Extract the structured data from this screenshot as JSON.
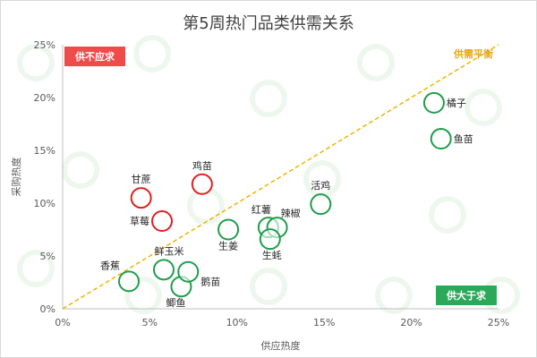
{
  "chart_data": {
    "type": "scatter",
    "title": "第5周热门品类供需关系",
    "xlabel": "供应热度",
    "ylabel": "采购热度",
    "xlim": [
      0,
      25
    ],
    "ylim": [
      0,
      25
    ],
    "x_ticks": [
      "0%",
      "5%",
      "10%",
      "15%",
      "20%",
      "25%"
    ],
    "y_ticks": [
      "0%",
      "5%",
      "10%",
      "15%",
      "20%",
      "25%"
    ],
    "grid": false,
    "reference_line": {
      "label": "供需平衡",
      "from": [
        0,
        0
      ],
      "to": [
        25,
        25
      ],
      "color": "#f0b400"
    },
    "regions": [
      {
        "label": "供不应求",
        "position": "top-left",
        "color": "#f04b4b"
      },
      {
        "label": "供大于求",
        "position": "bottom-right",
        "color": "#2ca85a"
      }
    ],
    "series": [
      {
        "status": "supply-short",
        "color": "#e02020",
        "points": [
          {
            "label": "甘蔗",
            "x": 4.5,
            "y": 10.5
          },
          {
            "label": "鸡苗",
            "x": 8.0,
            "y": 11.8
          },
          {
            "label": "草莓",
            "x": 5.7,
            "y": 8.3
          }
        ]
      },
      {
        "status": "supply-surplus",
        "color": "#1f9d4b",
        "points": [
          {
            "label": "香蕉",
            "x": 3.8,
            "y": 2.6
          },
          {
            "label": "鲜玉米",
            "x": 5.8,
            "y": 3.7
          },
          {
            "label": "鲫鱼",
            "x": 6.8,
            "y": 2.1
          },
          {
            "label": "鹅苗",
            "x": 7.2,
            "y": 3.5
          },
          {
            "label": "生姜",
            "x": 9.5,
            "y": 7.5
          },
          {
            "label": "红薯",
            "x": 11.8,
            "y": 7.7
          },
          {
            "label": "辣椒",
            "x": 12.3,
            "y": 7.7
          },
          {
            "label": "生蚝",
            "x": 11.9,
            "y": 6.6
          },
          {
            "label": "活鸡",
            "x": 14.8,
            "y": 9.9
          },
          {
            "label": "橘子",
            "x": 21.3,
            "y": 19.5
          },
          {
            "label": "鱼苗",
            "x": 21.7,
            "y": 16.1
          }
        ]
      }
    ]
  }
}
